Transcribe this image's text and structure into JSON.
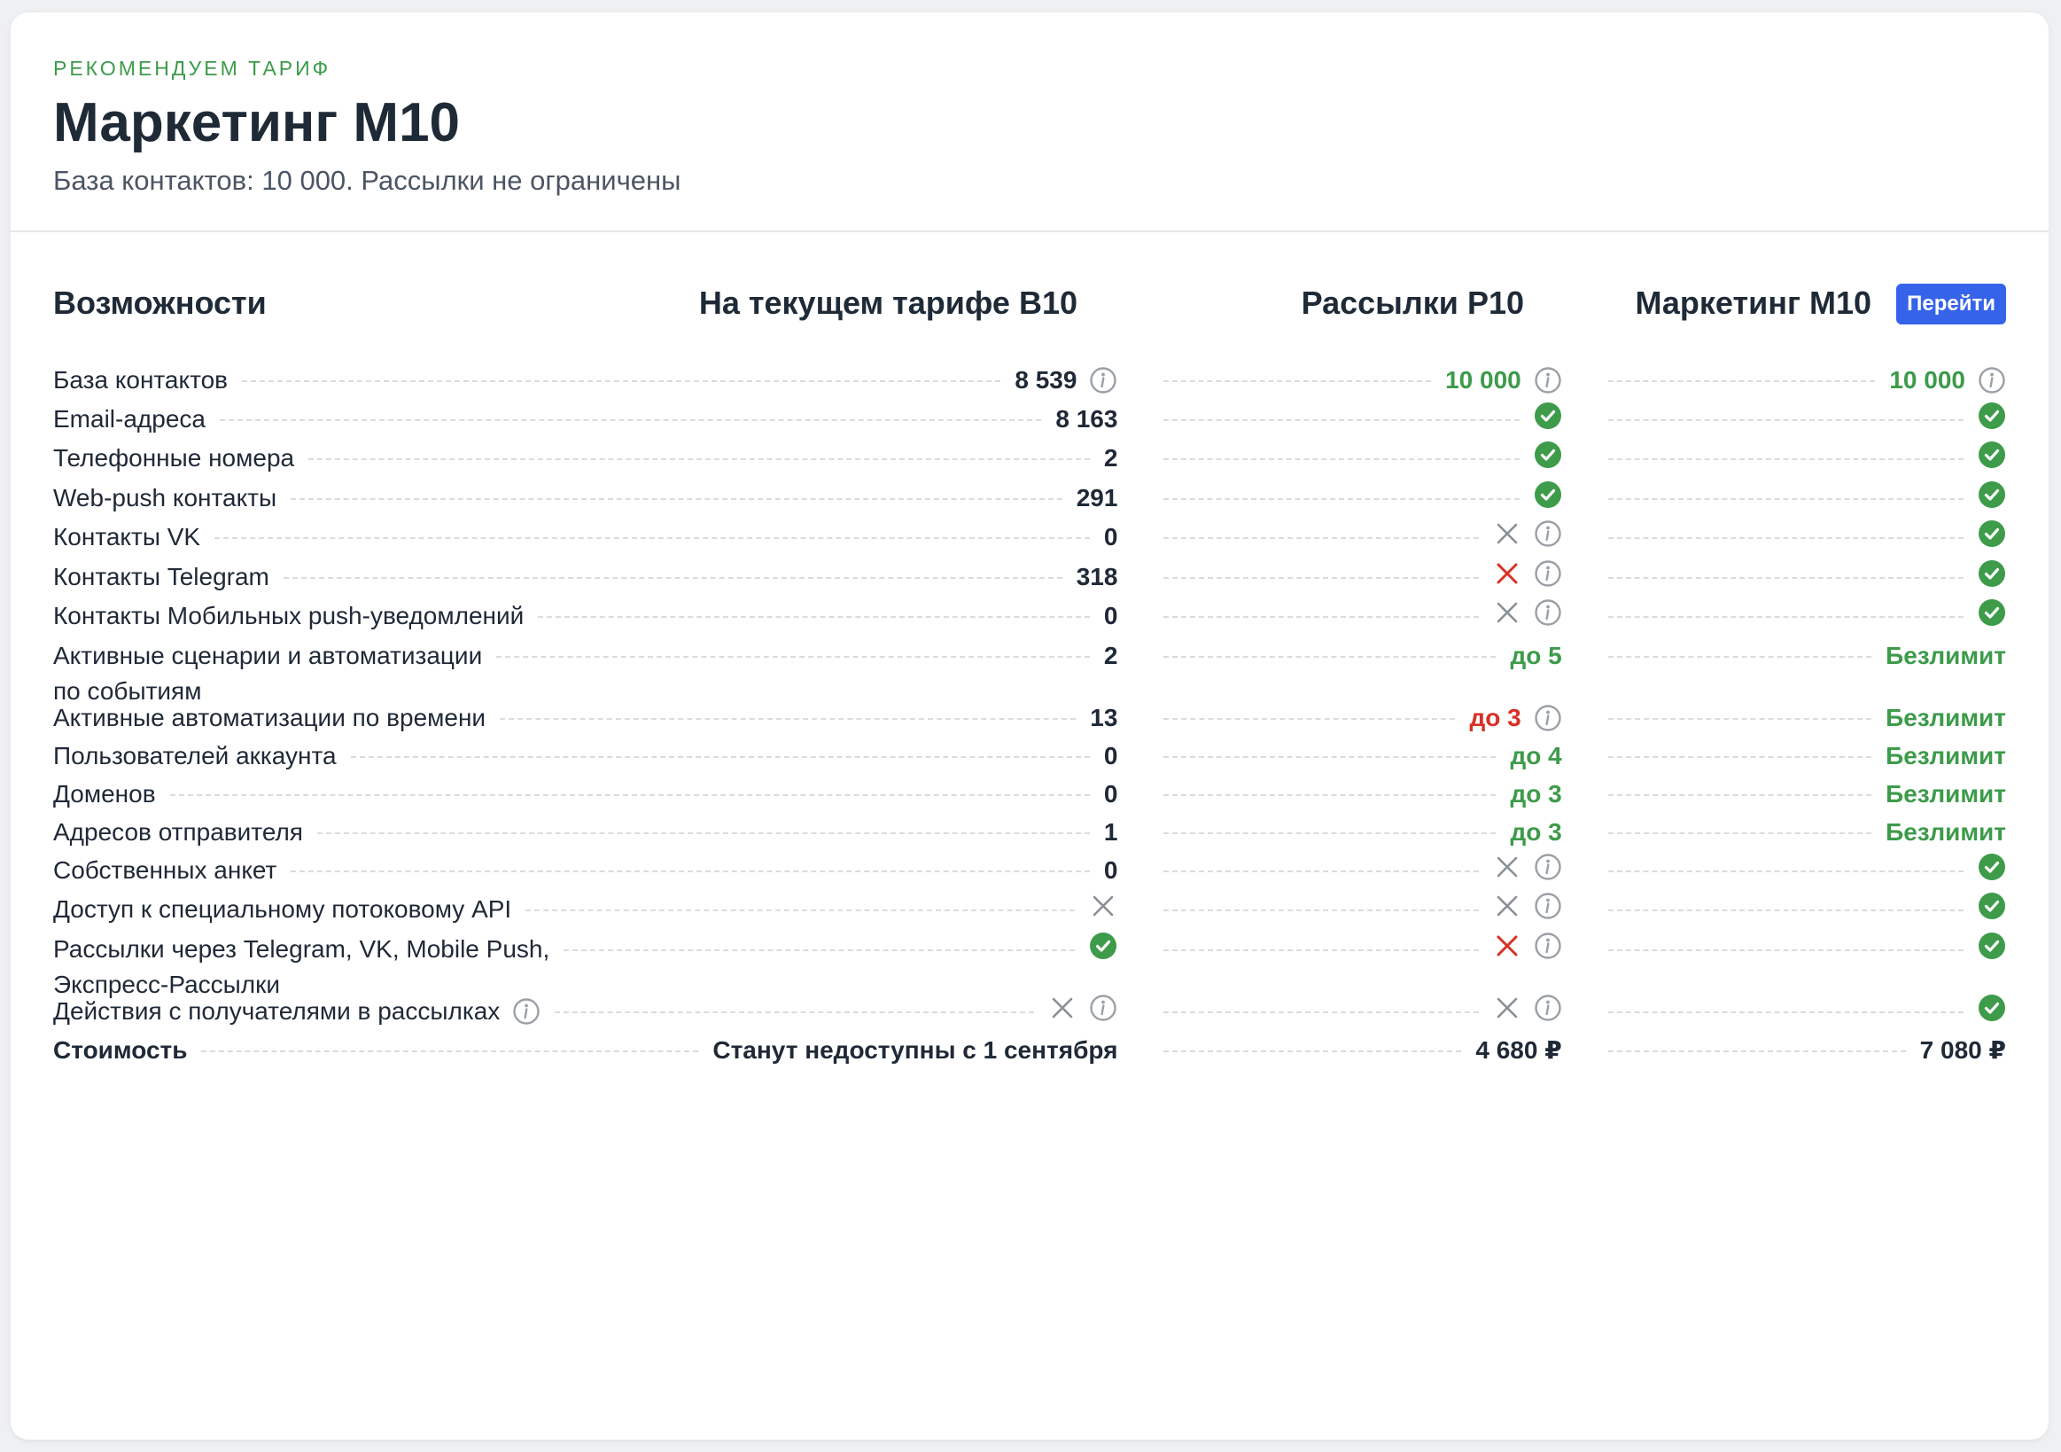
{
  "header": {
    "kicker": "РЕКОМЕНДУЕМ ТАРИФ",
    "title": "Маркетинг M10",
    "subtitle": "База контактов: 10 000. Рассылки не ограничены"
  },
  "columns": {
    "features": "Возможности",
    "current": "На текущем тарифе B10",
    "plan_p10": "Рассылки P10",
    "plan_m10": "Маркетинг M10",
    "go_button": "Перейти"
  },
  "rows": [
    {
      "label": "База контактов",
      "current": {
        "text": "8 539",
        "icon": "info"
      },
      "p10": {
        "text": "10 000",
        "color": "green",
        "icon": "info"
      },
      "m10": {
        "text": "10 000",
        "color": "green",
        "icon": "info"
      }
    },
    {
      "label": "Email-адреса",
      "current": {
        "text": "8 163"
      },
      "p10": {
        "icon": "check"
      },
      "m10": {
        "icon": "check"
      }
    },
    {
      "label": "Телефонные номера",
      "current": {
        "text": "2"
      },
      "p10": {
        "icon": "check"
      },
      "m10": {
        "icon": "check"
      }
    },
    {
      "label": "Web-push контакты",
      "current": {
        "text": "291"
      },
      "p10": {
        "icon": "check"
      },
      "m10": {
        "icon": "check"
      }
    },
    {
      "label": "Контакты VK",
      "current": {
        "text": "0"
      },
      "p10": {
        "icon": "cross-gray",
        "icon2": "info"
      },
      "m10": {
        "icon": "check"
      }
    },
    {
      "label": "Контакты Telegram",
      "current": {
        "text": "318"
      },
      "p10": {
        "icon": "cross-red",
        "icon2": "info"
      },
      "m10": {
        "icon": "check"
      }
    },
    {
      "label": "Контакты Мобильных push-уведомлений",
      "current": {
        "text": "0"
      },
      "p10": {
        "icon": "cross-gray",
        "icon2": "info"
      },
      "m10": {
        "icon": "check"
      }
    },
    {
      "label": "Активные сценарии и автоматизации",
      "label2": "по событиям",
      "current": {
        "text": "2"
      },
      "p10": {
        "text": "до 5",
        "color": "green"
      },
      "m10": {
        "text": "Безлимит",
        "color": "green"
      }
    },
    {
      "label": "Активные автоматизации по времени",
      "current": {
        "text": "13"
      },
      "p10": {
        "text": "до 3",
        "color": "red",
        "icon": "info"
      },
      "m10": {
        "text": "Безлимит",
        "color": "green"
      }
    },
    {
      "label": "Пользователей аккаунта",
      "current": {
        "text": "0"
      },
      "p10": {
        "text": "до 4",
        "color": "green"
      },
      "m10": {
        "text": "Безлимит",
        "color": "green"
      }
    },
    {
      "label": "Доменов",
      "current": {
        "text": "0"
      },
      "p10": {
        "text": "до 3",
        "color": "green"
      },
      "m10": {
        "text": "Безлимит",
        "color": "green"
      }
    },
    {
      "label": "Адресов отправителя",
      "current": {
        "text": "1"
      },
      "p10": {
        "text": "до 3",
        "color": "green"
      },
      "m10": {
        "text": "Безлимит",
        "color": "green"
      }
    },
    {
      "label": "Собственных анкет",
      "current": {
        "text": "0"
      },
      "p10": {
        "icon": "cross-gray",
        "icon2": "info"
      },
      "m10": {
        "icon": "check"
      }
    },
    {
      "label": "Доступ к специальному потоковому API",
      "current": {
        "icon": "cross-gray"
      },
      "p10": {
        "icon": "cross-gray",
        "icon2": "info"
      },
      "m10": {
        "icon": "check"
      }
    },
    {
      "label": "Рассылки через Telegram, VK, Mobile Push,",
      "label2": "Экспресс-Рассылки",
      "current": {
        "icon": "check"
      },
      "p10": {
        "icon": "cross-red",
        "icon2": "info"
      },
      "m10": {
        "icon": "check"
      }
    },
    {
      "label": "Действия с получателями в рассылках",
      "label_info": true,
      "current": {
        "icon": "cross-gray",
        "icon2": "info"
      },
      "p10": {
        "icon": "cross-gray",
        "icon2": "info"
      },
      "m10": {
        "icon": "check"
      }
    },
    {
      "label": "Стоимость",
      "bold": true,
      "current": {
        "text": "Станут недоступны с 1 сентября"
      },
      "p10": {
        "text": "4 680 ₽"
      },
      "m10": {
        "text": "7 080 ₽"
      }
    }
  ],
  "colors": {
    "green": "#3d9b4a",
    "red": "#d93025",
    "gray": "#8a8f96",
    "accent": "#3563e9"
  }
}
